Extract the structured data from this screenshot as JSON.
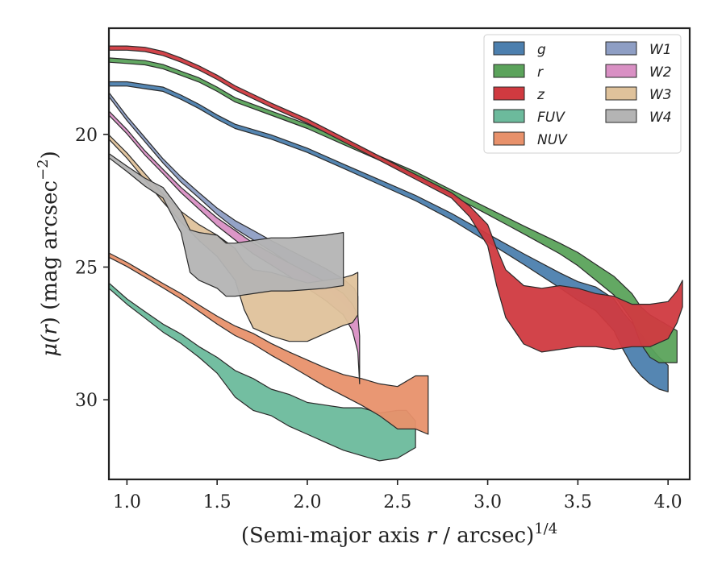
{
  "chart_data": {
    "type": "area",
    "xlabel": "(Semi-major axis r / arcsec)^1/4",
    "xlabel_parts": [
      "(Semi-major axis ",
      "r",
      " / arcsec)",
      "1/4"
    ],
    "ylabel": "μ(r) (mag arcsec^−2)",
    "ylabel_parts": [
      "μ(",
      "r",
      ") (mag arcsec",
      "−2",
      ")"
    ],
    "xlim": [
      0.9,
      4.12
    ],
    "ylim": [
      33.0,
      16.0
    ],
    "y_inverted": true,
    "xticks": [
      1.0,
      1.5,
      2.0,
      2.5,
      3.0,
      3.5,
      4.0
    ],
    "xtick_labels": [
      "1.0",
      "1.5",
      "2.0",
      "2.5",
      "3.0",
      "3.5",
      "4.0"
    ],
    "yticks": [
      20,
      25,
      30
    ],
    "ytick_labels": [
      "20",
      "25",
      "30"
    ],
    "grid": false,
    "legend_position": "top-right",
    "legend_columns": 2,
    "series": [
      {
        "name": "g",
        "color": "#4c7fae",
        "x": [
          0.9,
          1.0,
          1.1,
          1.2,
          1.3,
          1.4,
          1.5,
          1.6,
          1.8,
          2.0,
          2.2,
          2.4,
          2.6,
          2.8,
          3.0,
          3.2,
          3.4,
          3.5,
          3.6,
          3.7,
          3.75,
          3.8,
          3.85,
          3.9,
          3.95,
          4.0
        ],
        "y": [
          18.1,
          18.1,
          18.2,
          18.3,
          18.6,
          18.95,
          19.35,
          19.7,
          20.1,
          20.6,
          21.2,
          21.8,
          22.4,
          23.1,
          23.9,
          24.7,
          25.5,
          25.9,
          26.2,
          26.8,
          27.4,
          27.9,
          28.3,
          28.7,
          29.0,
          29.2
        ],
        "band": [
          0.08,
          0.08,
          0.08,
          0.08,
          0.08,
          0.08,
          0.08,
          0.08,
          0.08,
          0.08,
          0.08,
          0.09,
          0.1,
          0.12,
          0.15,
          0.2,
          0.28,
          0.35,
          0.45,
          0.6,
          0.7,
          0.8,
          0.8,
          0.7,
          0.6,
          0.5
        ]
      },
      {
        "name": "r",
        "color": "#5ba35b",
        "x": [
          0.9,
          1.0,
          1.1,
          1.2,
          1.3,
          1.4,
          1.5,
          1.6,
          1.8,
          2.0,
          2.2,
          2.4,
          2.6,
          2.8,
          3.0,
          3.2,
          3.4,
          3.5,
          3.6,
          3.7,
          3.8,
          3.85,
          3.9,
          3.95,
          4.0,
          4.05
        ],
        "y": [
          17.2,
          17.25,
          17.3,
          17.45,
          17.7,
          17.95,
          18.3,
          18.7,
          19.2,
          19.7,
          20.3,
          20.9,
          21.5,
          22.2,
          22.9,
          23.6,
          24.3,
          24.7,
          25.2,
          25.7,
          26.5,
          27.2,
          27.6,
          27.8,
          27.9,
          28.0
        ],
        "band": [
          0.08,
          0.08,
          0.08,
          0.08,
          0.08,
          0.08,
          0.08,
          0.08,
          0.08,
          0.08,
          0.08,
          0.08,
          0.09,
          0.1,
          0.12,
          0.15,
          0.2,
          0.25,
          0.3,
          0.35,
          0.5,
          0.7,
          0.8,
          0.8,
          0.7,
          0.6
        ]
      },
      {
        "name": "z",
        "color": "#d03a40",
        "x": [
          0.9,
          1.0,
          1.1,
          1.2,
          1.3,
          1.4,
          1.5,
          1.6,
          1.8,
          2.0,
          2.2,
          2.4,
          2.6,
          2.8,
          2.9,
          3.0,
          3.05,
          3.1,
          3.2,
          3.3,
          3.4,
          3.5,
          3.6,
          3.7,
          3.8,
          3.9,
          4.0,
          4.05,
          4.08
        ],
        "y": [
          16.75,
          16.75,
          16.8,
          16.95,
          17.2,
          17.5,
          17.85,
          18.25,
          18.9,
          19.5,
          20.2,
          20.9,
          21.6,
          22.3,
          22.9,
          23.8,
          25.0,
          26.0,
          26.8,
          27.0,
          26.9,
          26.9,
          27.0,
          27.1,
          27.2,
          27.2,
          27.0,
          26.5,
          26.0
        ],
        "band": [
          0.08,
          0.08,
          0.08,
          0.08,
          0.08,
          0.08,
          0.08,
          0.08,
          0.08,
          0.08,
          0.08,
          0.08,
          0.09,
          0.1,
          0.2,
          0.4,
          0.7,
          0.9,
          1.1,
          1.2,
          1.2,
          1.1,
          1.0,
          1.0,
          0.8,
          0.8,
          0.7,
          0.6,
          0.5
        ]
      },
      {
        "name": "FUV",
        "color": "#6cba9c",
        "x": [
          0.9,
          1.0,
          1.1,
          1.2,
          1.3,
          1.4,
          1.5,
          1.6,
          1.7,
          1.8,
          1.9,
          2.0,
          2.1,
          2.2,
          2.3,
          2.4,
          2.5,
          2.55,
          2.6
        ],
        "y": [
          25.7,
          26.3,
          26.8,
          27.3,
          27.7,
          28.2,
          28.7,
          29.4,
          29.8,
          30.1,
          30.4,
          30.7,
          30.9,
          31.1,
          31.2,
          31.4,
          31.3,
          31.2,
          31.3
        ],
        "band": [
          0.1,
          0.1,
          0.12,
          0.15,
          0.18,
          0.2,
          0.3,
          0.5,
          0.6,
          0.5,
          0.6,
          0.6,
          0.7,
          0.8,
          0.9,
          0.9,
          0.9,
          0.8,
          0.5
        ]
      },
      {
        "name": "NUV",
        "color": "#e8916b",
        "x": [
          0.9,
          1.0,
          1.1,
          1.2,
          1.3,
          1.4,
          1.5,
          1.6,
          1.7,
          1.8,
          1.9,
          2.0,
          2.1,
          2.2,
          2.3,
          2.4,
          2.5,
          2.6,
          2.67
        ],
        "y": [
          24.55,
          24.9,
          25.3,
          25.7,
          26.1,
          26.55,
          27.0,
          27.4,
          27.7,
          28.1,
          28.45,
          28.8,
          29.15,
          29.45,
          29.7,
          30.0,
          30.3,
          30.1,
          30.2
        ],
        "band": [
          0.08,
          0.08,
          0.08,
          0.08,
          0.1,
          0.12,
          0.15,
          0.18,
          0.2,
          0.22,
          0.25,
          0.3,
          0.35,
          0.4,
          0.5,
          0.6,
          0.8,
          1.0,
          1.1
        ]
      },
      {
        "name": "W1",
        "color": "#8e9ec4",
        "x": [
          0.9,
          1.0,
          1.1,
          1.2,
          1.3,
          1.4,
          1.5,
          1.6,
          1.7,
          1.8,
          1.9,
          2.0,
          2.1,
          2.2,
          2.26,
          2.28
        ],
        "y": [
          18.5,
          19.4,
          20.2,
          21.0,
          21.7,
          22.3,
          22.9,
          23.4,
          23.8,
          24.2,
          24.6,
          25.0,
          25.4,
          25.9,
          26.3,
          26.6
        ],
        "band": [
          0.08,
          0.08,
          0.08,
          0.08,
          0.1,
          0.1,
          0.12,
          0.15,
          0.18,
          0.2,
          0.25,
          0.3,
          0.35,
          0.45,
          0.5,
          0.5
        ]
      },
      {
        "name": "W2",
        "color": "#d990c4",
        "x": [
          0.9,
          1.0,
          1.1,
          1.2,
          1.3,
          1.4,
          1.5,
          1.6,
          1.7,
          1.8,
          1.9,
          2.0,
          2.1,
          2.2,
          2.25,
          2.28,
          2.29
        ],
        "y": [
          19.2,
          19.9,
          20.7,
          21.4,
          22.1,
          22.7,
          23.3,
          23.8,
          24.3,
          24.7,
          25.1,
          25.5,
          25.9,
          26.4,
          26.9,
          27.5,
          28.5
        ],
        "band": [
          0.08,
          0.08,
          0.08,
          0.08,
          0.1,
          0.12,
          0.15,
          0.18,
          0.2,
          0.22,
          0.25,
          0.3,
          0.35,
          0.4,
          0.5,
          0.7,
          0.9
        ]
      },
      {
        "name": "W3",
        "color": "#dfc29b",
        "x": [
          0.9,
          1.0,
          1.1,
          1.2,
          1.3,
          1.4,
          1.5,
          1.6,
          1.65,
          1.7,
          1.8,
          1.9,
          2.0,
          2.1,
          2.2,
          2.25,
          2.28
        ],
        "y": [
          20.1,
          20.8,
          21.6,
          22.4,
          23.1,
          23.7,
          24.2,
          24.9,
          25.7,
          26.2,
          26.4,
          26.6,
          26.7,
          26.5,
          26.3,
          26.2,
          26.0
        ],
        "band": [
          0.08,
          0.1,
          0.12,
          0.15,
          0.2,
          0.3,
          0.4,
          0.6,
          0.9,
          1.1,
          1.2,
          1.2,
          1.1,
          1.0,
          0.9,
          0.9,
          0.8
        ]
      },
      {
        "name": "W4",
        "color": "#b4b4b4",
        "x": [
          0.9,
          1.0,
          1.1,
          1.2,
          1.3,
          1.35,
          1.4,
          1.5,
          1.55,
          1.6,
          1.7,
          1.8,
          1.9,
          2.0,
          2.1,
          2.2
        ],
        "y": [
          20.8,
          21.3,
          21.8,
          22.2,
          23.3,
          24.4,
          24.6,
          24.8,
          25.1,
          25.1,
          25.0,
          24.9,
          24.9,
          24.85,
          24.8,
          24.7
        ],
        "band": [
          0.08,
          0.1,
          0.15,
          0.2,
          0.4,
          0.8,
          0.9,
          1.0,
          1.0,
          1.0,
          1.0,
          1.0,
          1.0,
          1.0,
          1.0,
          1.0
        ]
      }
    ]
  }
}
